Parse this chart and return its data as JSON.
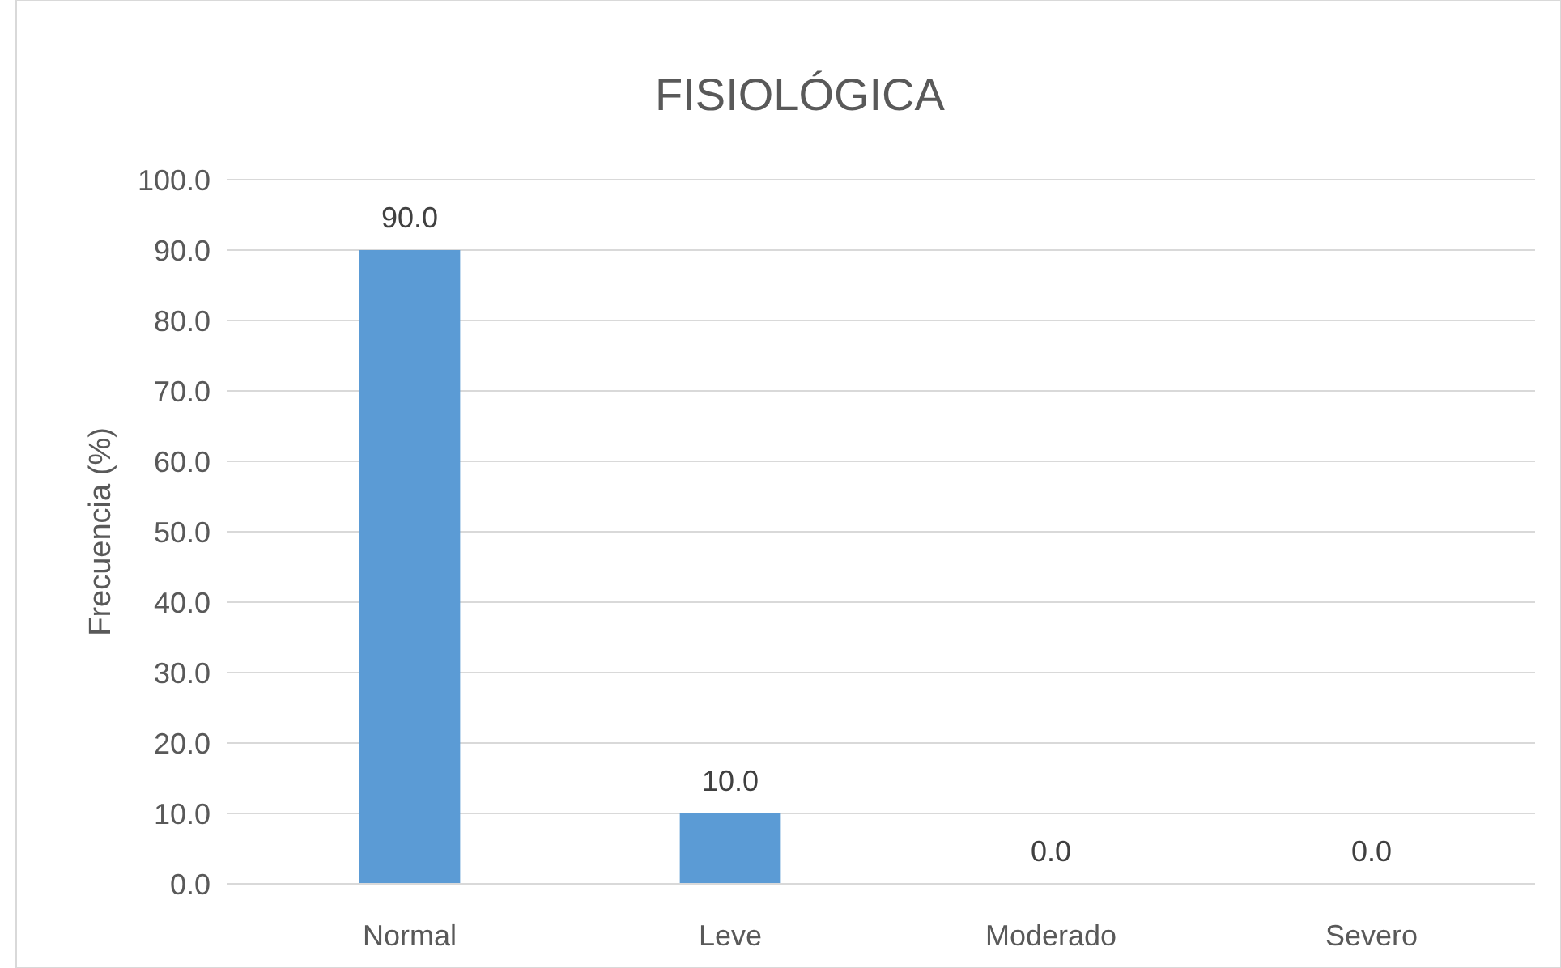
{
  "chart_data": {
    "type": "bar",
    "title": "FISIOLÓGICA",
    "ylabel": "Frecuencia (%)",
    "categories": [
      "Normal",
      "Leve",
      "Moderado",
      "Severo"
    ],
    "values": [
      90,
      10,
      0,
      0
    ],
    "value_labels": [
      "90.0",
      "10.0",
      "0.0",
      "0.0"
    ],
    "color": "#5b9bd5",
    "ylim": [
      0,
      100
    ],
    "yticks": [
      {
        "value": 0,
        "label": "0.0"
      },
      {
        "value": 10,
        "label": "10.0"
      },
      {
        "value": 20,
        "label": "20.0"
      },
      {
        "value": 30,
        "label": "30.0"
      },
      {
        "value": 40,
        "label": "40.0"
      },
      {
        "value": 50,
        "label": "50.0"
      },
      {
        "value": 60,
        "label": "60.0"
      },
      {
        "value": 70,
        "label": "70.0"
      },
      {
        "value": 80,
        "label": "80.0"
      },
      {
        "value": 90,
        "label": "90.0"
      },
      {
        "value": 100,
        "label": "100.0"
      }
    ],
    "grid": "y"
  }
}
